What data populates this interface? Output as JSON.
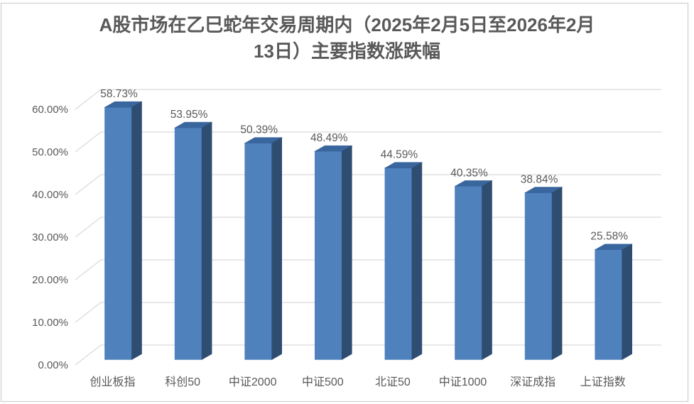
{
  "title": {
    "text": "A股市场在乙巳蛇年交易周期内（2025年2月5日至2026年2月13日）主要指数涨跌幅",
    "lines": [
      "A股市场在乙巳蛇年交易周期内（2025年2月5日至2026年2月",
      "13日）主要指数涨跌幅"
    ]
  },
  "chart_data": {
    "type": "bar",
    "style": "3d-column",
    "title": "A股市场在乙巳蛇年交易周期内（2025年2月5日至2026年2月13日）主要指数涨跌幅",
    "categories": [
      "创业板指",
      "科创50",
      "中证2000",
      "中证500",
      "北证50",
      "中证1000",
      "深证成指",
      "上证指数"
    ],
    "values": [
      58.73,
      53.95,
      50.39,
      48.49,
      44.59,
      40.35,
      38.84,
      25.58
    ],
    "data_labels": [
      "58.73%",
      "53.95%",
      "50.39%",
      "48.49%",
      "44.59%",
      "40.35%",
      "38.84%",
      "25.58%"
    ],
    "y_ticks": [
      "0.00%",
      "10.00%",
      "20.00%",
      "30.00%",
      "40.00%",
      "50.00%",
      "60.00%"
    ],
    "ylim": [
      0,
      60
    ],
    "y_tick_step": 10,
    "xlabel": "",
    "ylabel": "",
    "grid": true,
    "legend": false,
    "colors": {
      "bar_front": "#4F81BD",
      "bar_top": "#3A669E",
      "bar_side": "#2E4D71",
      "gridline": "#D9D9D9",
      "text": "#595959",
      "border": "#D3D3D3",
      "background": "#FFFFFF"
    }
  }
}
